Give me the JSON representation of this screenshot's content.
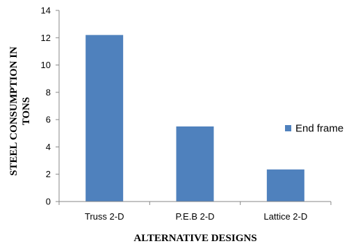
{
  "chart_data": {
    "type": "bar",
    "title": "",
    "categories": [
      "Truss 2-D",
      "P.E.B 2-D",
      "Lattice 2-D"
    ],
    "series": [
      {
        "name": "End frame",
        "values": [
          12.2,
          5.5,
          2.35
        ],
        "color": "#4F81BD"
      }
    ],
    "xlabel": "ALTERNATIVE DESIGNS",
    "ylabel_lines": [
      "STEEL CONSUMPTION IN",
      "TONS"
    ],
    "ylim": [
      0,
      14
    ],
    "yticks": [
      0,
      2,
      4,
      6,
      8,
      10,
      12,
      14
    ],
    "grid": false,
    "legend_position": "right"
  }
}
